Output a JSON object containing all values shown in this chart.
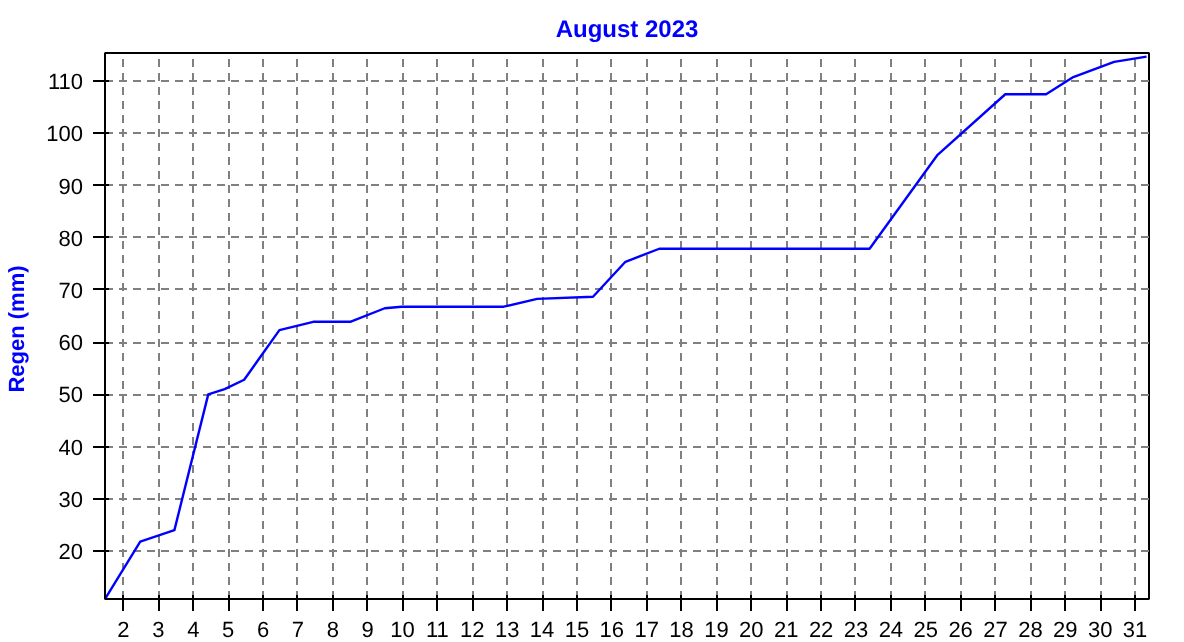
{
  "chart_data": {
    "type": "line",
    "title": "August 2023",
    "ylabel": "Regen  (mm)",
    "xlim": [
      1.47,
      31.4
    ],
    "ylim": [
      10.8,
      115.4
    ],
    "xticks": [
      2,
      3,
      4,
      5,
      6,
      7,
      8,
      9,
      10,
      11,
      12,
      13,
      14,
      15,
      16,
      17,
      18,
      19,
      20,
      21,
      22,
      23,
      24,
      25,
      26,
      27,
      28,
      29,
      30,
      31
    ],
    "yticks": [
      20,
      30,
      40,
      50,
      60,
      70,
      80,
      90,
      100,
      110
    ],
    "grid": true,
    "line_style": "solid",
    "series": [
      {
        "color": "#0000ff",
        "x": [
          1.47,
          2.48,
          3.46,
          4.43,
          4.9,
          5.46,
          6.47,
          7.44,
          8.5,
          9.49,
          9.97,
          12.9,
          13.86,
          15.46,
          16.39,
          17.36,
          23.39,
          25.34,
          27.28,
          28.45,
          29.23,
          30.4,
          31.33
        ],
        "values": [
          10.8,
          21.8,
          24,
          50,
          51,
          52.8,
          62.3,
          63.9,
          63.9,
          66.5,
          66.8,
          66.8,
          68.3,
          68.7,
          75.4,
          77.9,
          77.9,
          95.9,
          107.5,
          107.5,
          110.8,
          113.7,
          114.7
        ]
      }
    ]
  }
}
